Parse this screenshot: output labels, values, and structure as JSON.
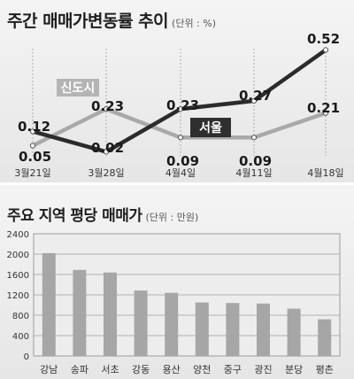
{
  "line_panel": {
    "title": "주간 매매가변동률 추이",
    "unit": "(단위 : %)"
  },
  "bar_panel": {
    "title": "주요 지역 평당 매매가",
    "unit": "(단위 : 만원)"
  },
  "chart_data": [
    {
      "type": "line",
      "title": "주간 매매가변동률 추이",
      "unit": "(단위 : %)",
      "categories": [
        "3월21일",
        "3월28일",
        "4월4일",
        "4월11일",
        "4월18일"
      ],
      "series": [
        {
          "name": "서울",
          "values": [
            0.12,
            0.02,
            0.23,
            0.27,
            0.52
          ],
          "color": "#2b2b2b"
        },
        {
          "name": "신도시",
          "values": [
            0.05,
            0.23,
            0.09,
            0.09,
            0.21
          ],
          "color": "#a9a9a9"
        }
      ],
      "ylim": [
        0,
        0.6
      ],
      "grid": false
    },
    {
      "type": "bar",
      "title": "주요 지역 평당 매매가",
      "unit": "(단위 : 만원)",
      "categories": [
        "강남",
        "송파",
        "서초",
        "강동",
        "용산",
        "양천",
        "중구",
        "광진",
        "분당",
        "평촌"
      ],
      "values": [
        2020,
        1690,
        1640,
        1285,
        1240,
        1050,
        1040,
        1030,
        930,
        720
      ],
      "yticks": [
        "0",
        "400",
        "800",
        "1200",
        "1600",
        "2000",
        "2400"
      ],
      "ylim": [
        0,
        2400
      ],
      "grid": true,
      "bar_color": "#a6a6a6"
    }
  ]
}
